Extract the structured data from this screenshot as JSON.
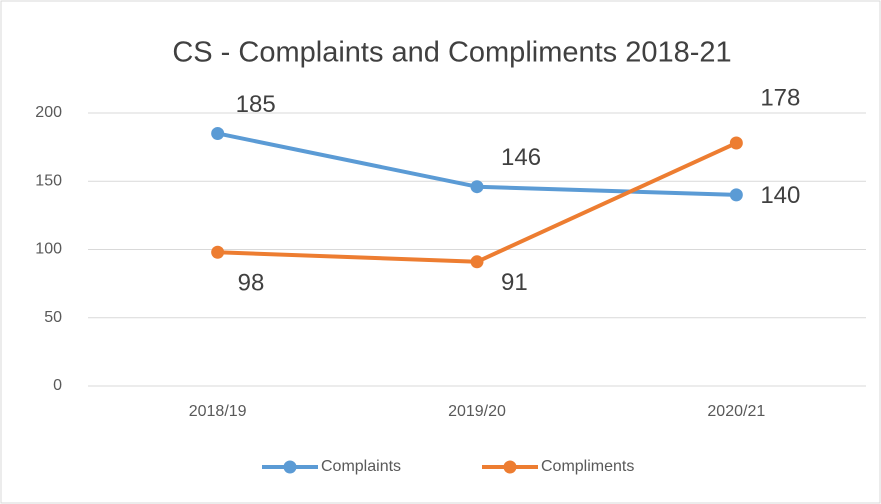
{
  "chart_data": {
    "type": "line",
    "title": "CS - Complaints and Compliments 2018-21",
    "categories": [
      "2018/19",
      "2019/20",
      "2020/21"
    ],
    "series": [
      {
        "name": "Complaints",
        "color": "#5b9bd5",
        "values": [
          185,
          146,
          140
        ]
      },
      {
        "name": "Compliments",
        "color": "#ed7d31",
        "values": [
          98,
          91,
          178
        ]
      }
    ],
    "ylim": [
      0,
      200
    ],
    "yticks": [
      0,
      50,
      100,
      150,
      200
    ],
    "grid": true,
    "legend": "bottom"
  }
}
